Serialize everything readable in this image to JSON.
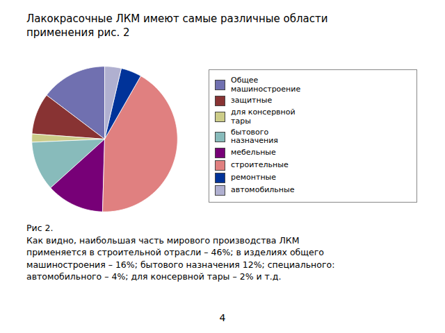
{
  "chart_data": {
    "type": "pie",
    "title": "Лакокрасочные ЛКМ имеют самые различные области\nприменения рис. 2",
    "categories": [
      "Общее\nмашиностроение",
      "защитные",
      "для консервной\nтары",
      "бытового\nназначения",
      "мебельные",
      "строительные",
      "ремонтные",
      "автомобильные"
    ],
    "values": [
      16,
      10,
      2,
      12,
      14,
      46,
      5,
      4
    ],
    "colors": [
      "#7070b0",
      "#883333",
      "#cccc88",
      "#88bbbb",
      "#770077",
      "#e08080",
      "#003399",
      "#b0b0d0"
    ],
    "legend": "right",
    "annotations": [
      "Рис 2.\nКак видно, наибольшая часть мирового производства ЛКМ\nприменяется в строительной отрасли – 46%; в изделиях общего\nмашиностроения – 16%; бытового назначения 12%; специального:\nавтомобильного – 4%; для консервной тары – 2% и т.д.",
      "4"
    ]
  }
}
